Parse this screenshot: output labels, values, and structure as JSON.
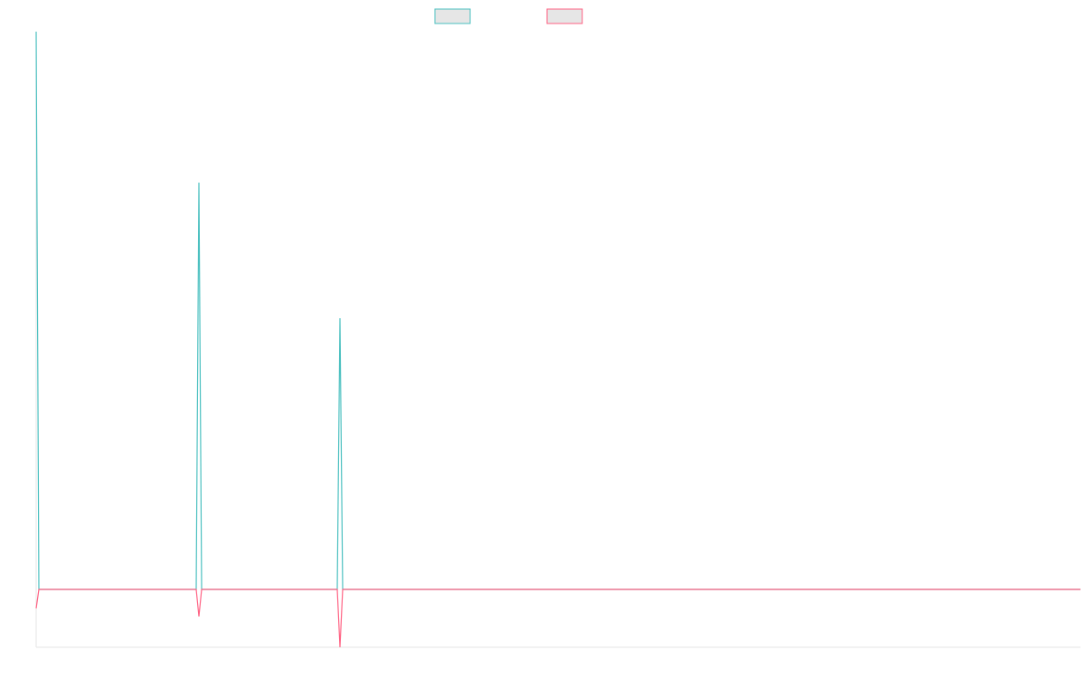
{
  "chart_data": {
    "type": "line",
    "x": [
      0,
      1,
      59,
      60,
      61,
      111,
      112,
      113,
      385
    ],
    "xlim": [
      0,
      385
    ],
    "ylim": [
      -64,
      617
    ],
    "series": [
      {
        "color": "#4bc0c0",
        "values": [
          617,
          0,
          0,
          450,
          0,
          0,
          300,
          0,
          0
        ]
      },
      {
        "color": "#ff6384",
        "values": [
          -21,
          0,
          0,
          -30,
          0,
          0,
          -64,
          0,
          0
        ]
      }
    ]
  }
}
